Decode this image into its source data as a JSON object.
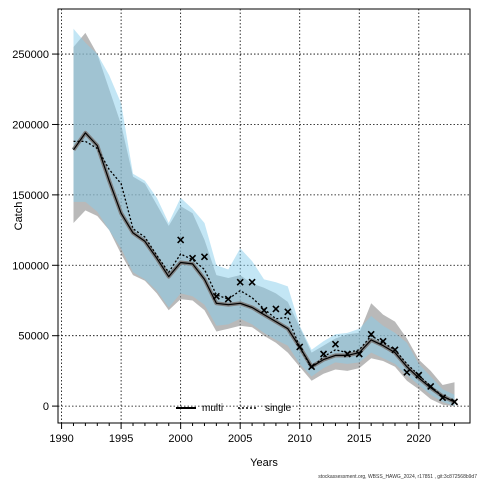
{
  "chart_data": {
    "type": "line",
    "xlabel": "Years",
    "ylabel": "Catch",
    "xlim": [
      1989.7,
      2024.3
    ],
    "ylim": [
      -12000,
      282000
    ],
    "x_ticks": [
      1990,
      1995,
      2000,
      2005,
      2010,
      2015,
      2020
    ],
    "y_ticks": [
      0,
      50000,
      100000,
      150000,
      200000,
      250000
    ],
    "y_tick_labels": [
      "0",
      "50000",
      "100000",
      "150000",
      "200000",
      "250000"
    ],
    "grid": true,
    "legend_placement": "bottom-center",
    "years": [
      1991,
      1992,
      1993,
      1994,
      1995,
      1996,
      1997,
      1998,
      1999,
      2000,
      2001,
      2002,
      2003,
      2004,
      2005,
      2006,
      2007,
      2008,
      2009,
      2010,
      2011,
      2012,
      2013,
      2014,
      2015,
      2016,
      2017,
      2018,
      2019,
      2020,
      2021,
      2022,
      2023
    ],
    "series": [
      {
        "name": "multi",
        "color": "#000000",
        "band_color": "#8a8a8a",
        "line_style": "solid",
        "values": [
          182000,
          194000,
          185000,
          160000,
          137000,
          123000,
          117000,
          105000,
          92000,
          102000,
          101000,
          90000,
          73000,
          72000,
          73000,
          70000,
          65000,
          60000,
          55000,
          42000,
          28000,
          33000,
          36000,
          36000,
          38000,
          47000,
          43000,
          38000,
          28000,
          20000,
          13000,
          7000,
          3000
        ],
        "lower": [
          130000,
          139000,
          135000,
          125000,
          108000,
          93000,
          89000,
          80000,
          68000,
          76000,
          75000,
          68000,
          53000,
          55000,
          57000,
          56000,
          50000,
          45000,
          38000,
          28000,
          18000,
          23000,
          26000,
          25000,
          27000,
          34000,
          32000,
          28000,
          18000,
          12000,
          5000,
          1000,
          0
        ],
        "upper": [
          255000,
          265000,
          250000,
          225000,
          200000,
          163000,
          158000,
          143000,
          128000,
          142000,
          137000,
          118000,
          93000,
          91000,
          93000,
          87000,
          84000,
          80000,
          74000,
          56000,
          38000,
          43000,
          48000,
          51000,
          52000,
          73000,
          65000,
          60000,
          48000,
          33000,
          25000,
          15000,
          17000
        ]
      },
      {
        "name": "single",
        "color": "#000000",
        "band_color": "#87ceeb",
        "line_style": "dotted",
        "values": [
          188000,
          188000,
          183000,
          168000,
          158000,
          126000,
          120000,
          107000,
          95000,
          108000,
          104000,
          97000,
          79000,
          76000,
          82000,
          77000,
          69000,
          62000,
          63000,
          42000,
          27000,
          35000,
          40000,
          38000,
          40000,
          50000,
          45000,
          40000,
          30000,
          22000,
          14000,
          7000,
          3000
        ],
        "lower": [
          145000,
          145000,
          138000,
          125000,
          112000,
          95000,
          90000,
          82000,
          70000,
          80000,
          78000,
          72000,
          57000,
          58000,
          62000,
          58000,
          52000,
          47000,
          43000,
          30000,
          21000,
          27000,
          31000,
          30000,
          31000,
          38000,
          34000,
          30000,
          22000,
          15000,
          8000,
          3000,
          0
        ],
        "upper": [
          268000,
          258000,
          250000,
          235000,
          215000,
          165000,
          160000,
          148000,
          130000,
          148000,
          140000,
          130000,
          100000,
          97000,
          112000,
          103000,
          90000,
          88000,
          85000,
          57000,
          40000,
          46000,
          51000,
          52000,
          55000,
          64000,
          57000,
          52000,
          45000,
          30000,
          21000,
          12000,
          8000
        ]
      }
    ],
    "observed": {
      "marker": "x",
      "points": [
        [
          2000,
          118000
        ],
        [
          2001,
          105000
        ],
        [
          2002,
          106000
        ],
        [
          2003,
          78000
        ],
        [
          2004,
          76000
        ],
        [
          2005,
          88000
        ],
        [
          2006,
          88000
        ],
        [
          2007,
          68000
        ],
        [
          2008,
          69000
        ],
        [
          2009,
          67000
        ],
        [
          2010,
          42000
        ],
        [
          2011,
          28000
        ],
        [
          2012,
          37000
        ],
        [
          2013,
          44000
        ],
        [
          2014,
          37000
        ],
        [
          2015,
          37000
        ],
        [
          2016,
          51000
        ],
        [
          2017,
          46000
        ],
        [
          2018,
          40000
        ],
        [
          2019,
          24000
        ],
        [
          2020,
          22000
        ],
        [
          2021,
          14000
        ],
        [
          2022,
          6000
        ],
        [
          2023,
          3000
        ]
      ]
    },
    "footer_text": "stockassessment.org, WBSS_HAWG_2024, r17851 , git:3c872568b9d7"
  }
}
